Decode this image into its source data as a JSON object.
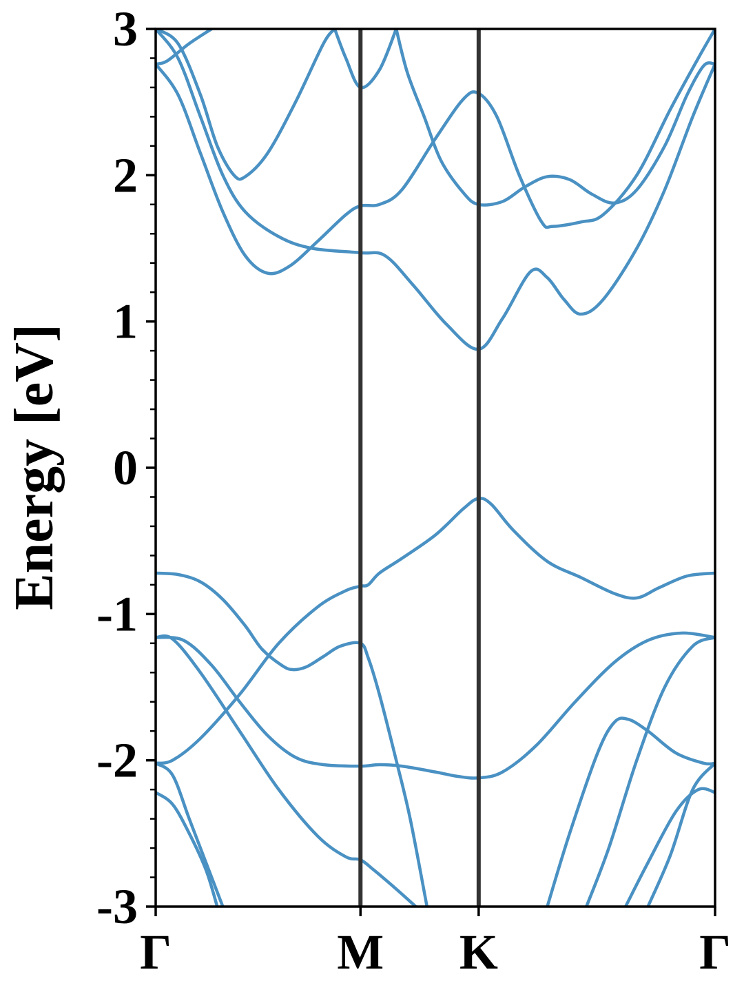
{
  "chart_data": {
    "type": "line",
    "title": "",
    "xlabel": "",
    "ylabel": "Energy [eV]",
    "ylim": [
      -3,
      3
    ],
    "yticks": [
      "-3",
      "-2",
      "-1",
      "0",
      "1",
      "2",
      "3"
    ],
    "x": [
      0,
      0.3661,
      0.5774,
      1.0
    ],
    "xtick_labels": [
      "Γ",
      "M",
      "K",
      "Γ"
    ],
    "grid": false,
    "legend": "none",
    "colors": {
      "band": "#4a91c3",
      "divider": "#333333",
      "frame": "#000000"
    },
    "series": [
      {
        "values": [
          [
            0.0,
            -0.72
          ],
          [
            0.04,
            -0.73
          ],
          [
            0.08,
            -0.78
          ],
          [
            0.12,
            -0.9
          ],
          [
            0.16,
            -1.08
          ],
          [
            0.19,
            -1.24
          ],
          [
            0.225,
            -1.35
          ],
          [
            0.245,
            -1.38
          ],
          [
            0.27,
            -1.36
          ],
          [
            0.3,
            -1.29
          ],
          [
            0.33,
            -1.22
          ],
          [
            0.366,
            -1.2
          ],
          [
            0.38,
            -1.3
          ],
          [
            0.4,
            -1.55
          ],
          [
            0.43,
            -2.0
          ],
          [
            0.455,
            -2.4
          ],
          [
            0.485,
            -3.0
          ]
        ]
      },
      {
        "values": [
          [
            0.0,
            -1.16
          ],
          [
            0.05,
            -1.18
          ],
          [
            0.1,
            -1.35
          ],
          [
            0.15,
            -1.6
          ],
          [
            0.2,
            -1.83
          ],
          [
            0.25,
            -1.98
          ],
          [
            0.3,
            -2.03
          ],
          [
            0.366,
            -2.04
          ],
          [
            0.4,
            -2.03
          ],
          [
            0.44,
            -2.04
          ],
          [
            0.5,
            -2.08
          ],
          [
            0.54,
            -2.11
          ],
          [
            0.577,
            -2.12
          ],
          [
            0.62,
            -2.08
          ],
          [
            0.68,
            -1.9
          ],
          [
            0.75,
            -1.6
          ],
          [
            0.82,
            -1.33
          ],
          [
            0.88,
            -1.18
          ],
          [
            0.94,
            -1.13
          ],
          [
            1.0,
            -1.16
          ]
        ]
      },
      {
        "values": [
          [
            0.0,
            -2.02
          ],
          [
            0.03,
            -2.0
          ],
          [
            0.08,
            -1.85
          ],
          [
            0.15,
            -1.55
          ],
          [
            0.22,
            -1.2
          ],
          [
            0.29,
            -0.95
          ],
          [
            0.34,
            -0.84
          ],
          [
            0.366,
            -0.81
          ],
          [
            0.38,
            -0.8
          ],
          [
            0.4,
            -0.72
          ],
          [
            0.44,
            -0.62
          ],
          [
            0.5,
            -0.46
          ],
          [
            0.55,
            -0.28
          ],
          [
            0.577,
            -0.21
          ],
          [
            0.6,
            -0.25
          ],
          [
            0.64,
            -0.43
          ],
          [
            0.7,
            -0.64
          ],
          [
            0.76,
            -0.75
          ],
          [
            0.82,
            -0.86
          ],
          [
            0.86,
            -0.89
          ],
          [
            0.9,
            -0.82
          ],
          [
            0.95,
            -0.74
          ],
          [
            1.0,
            -0.72
          ]
        ]
      },
      {
        "values": [
          [
            0.0,
            -1.16
          ],
          [
            0.03,
            -1.17
          ],
          [
            0.08,
            -1.4
          ],
          [
            0.15,
            -1.8
          ],
          [
            0.22,
            -2.2
          ],
          [
            0.29,
            -2.52
          ],
          [
            0.34,
            -2.66
          ],
          [
            0.366,
            -2.68
          ],
          [
            0.39,
            -2.75
          ],
          [
            0.43,
            -2.88
          ],
          [
            0.465,
            -3.0
          ]
        ]
      },
      {
        "values": [
          [
            0.0,
            -2.02
          ],
          [
            0.03,
            -2.1
          ],
          [
            0.06,
            -2.4
          ],
          [
            0.09,
            -2.7
          ],
          [
            0.12,
            -3.0
          ]
        ]
      },
      {
        "values": [
          [
            0.0,
            -2.22
          ],
          [
            0.03,
            -2.3
          ],
          [
            0.06,
            -2.5
          ],
          [
            0.09,
            -2.75
          ],
          [
            0.11,
            -3.0
          ]
        ]
      },
      {
        "values": [
          [
            0.7,
            -3.0
          ],
          [
            0.74,
            -2.5
          ],
          [
            0.79,
            -1.95
          ],
          [
            0.82,
            -1.74
          ],
          [
            0.845,
            -1.72
          ],
          [
            0.88,
            -1.8
          ],
          [
            0.93,
            -1.95
          ],
          [
            0.98,
            -2.02
          ],
          [
            1.0,
            -2.02
          ]
        ]
      },
      {
        "values": [
          [
            0.77,
            -3.0
          ],
          [
            0.81,
            -2.6
          ],
          [
            0.86,
            -2.0
          ],
          [
            0.91,
            -1.5
          ],
          [
            0.96,
            -1.22
          ],
          [
            1.0,
            -1.16
          ]
        ]
      },
      {
        "values": [
          [
            0.84,
            -3.0
          ],
          [
            0.88,
            -2.7
          ],
          [
            0.93,
            -2.35
          ],
          [
            0.97,
            -2.2
          ],
          [
            1.0,
            -2.22
          ]
        ]
      },
      {
        "values": [
          [
            0.88,
            -3.0
          ],
          [
            0.92,
            -2.65
          ],
          [
            0.96,
            -2.2
          ],
          [
            1.0,
            -2.02
          ]
        ]
      },
      {
        "values": [
          [
            0.0,
            2.76
          ],
          [
            0.02,
            2.78
          ],
          [
            0.06,
            2.9
          ],
          [
            0.1,
            3.0
          ]
        ]
      },
      {
        "values": [
          [
            0.0,
            3.0
          ],
          [
            0.04,
            2.9
          ],
          [
            0.08,
            2.55
          ],
          [
            0.11,
            2.2
          ],
          [
            0.14,
            2.0
          ],
          [
            0.16,
            1.99
          ],
          [
            0.2,
            2.15
          ],
          [
            0.25,
            2.5
          ],
          [
            0.3,
            2.9
          ],
          [
            0.32,
            3.0
          ]
        ]
      },
      {
        "values": [
          [
            0.0,
            2.76
          ],
          [
            0.04,
            2.55
          ],
          [
            0.08,
            2.15
          ],
          [
            0.12,
            1.75
          ],
          [
            0.16,
            1.45
          ],
          [
            0.2,
            1.33
          ],
          [
            0.24,
            1.38
          ],
          [
            0.29,
            1.55
          ],
          [
            0.34,
            1.73
          ],
          [
            0.366,
            1.79
          ],
          [
            0.4,
            1.8
          ],
          [
            0.44,
            1.9
          ],
          [
            0.5,
            2.25
          ],
          [
            0.55,
            2.52
          ],
          [
            0.577,
            2.56
          ],
          [
            0.61,
            2.4
          ],
          [
            0.65,
            2.0
          ],
          [
            0.69,
            1.68
          ],
          [
            0.71,
            1.65
          ],
          [
            0.76,
            1.68
          ],
          [
            0.8,
            1.73
          ],
          [
            0.86,
            2.0
          ],
          [
            0.92,
            2.45
          ],
          [
            0.97,
            2.8
          ],
          [
            1.0,
            3.0
          ]
        ]
      },
      {
        "values": [
          [
            0.0,
            3.0
          ],
          [
            0.04,
            2.8
          ],
          [
            0.08,
            2.4
          ],
          [
            0.12,
            2.0
          ],
          [
            0.16,
            1.75
          ],
          [
            0.22,
            1.58
          ],
          [
            0.28,
            1.5
          ],
          [
            0.366,
            1.47
          ],
          [
            0.41,
            1.45
          ],
          [
            0.46,
            1.25
          ],
          [
            0.52,
            0.98
          ],
          [
            0.577,
            0.81
          ],
          [
            0.62,
            1.02
          ],
          [
            0.67,
            1.34
          ],
          [
            0.7,
            1.3
          ],
          [
            0.73,
            1.15
          ],
          [
            0.76,
            1.05
          ],
          [
            0.8,
            1.15
          ],
          [
            0.86,
            1.5
          ],
          [
            0.91,
            1.9
          ],
          [
            0.96,
            2.4
          ],
          [
            1.0,
            2.76
          ]
        ]
      },
      {
        "values": [
          [
            0.32,
            3.0
          ],
          [
            0.34,
            2.8
          ],
          [
            0.366,
            2.6
          ],
          [
            0.4,
            2.72
          ],
          [
            0.43,
            3.0
          ]
        ]
      },
      {
        "values": [
          [
            0.43,
            3.0
          ],
          [
            0.45,
            2.7
          ],
          [
            0.48,
            2.4
          ],
          [
            0.51,
            2.1
          ],
          [
            0.55,
            1.88
          ],
          [
            0.577,
            1.8
          ],
          [
            0.62,
            1.82
          ],
          [
            0.66,
            1.92
          ],
          [
            0.7,
            1.99
          ],
          [
            0.74,
            1.97
          ],
          [
            0.78,
            1.87
          ],
          [
            0.82,
            1.81
          ],
          [
            0.86,
            1.9
          ],
          [
            0.91,
            2.2
          ],
          [
            0.95,
            2.55
          ],
          [
            0.98,
            2.75
          ],
          [
            1.0,
            2.76
          ]
        ]
      }
    ]
  }
}
